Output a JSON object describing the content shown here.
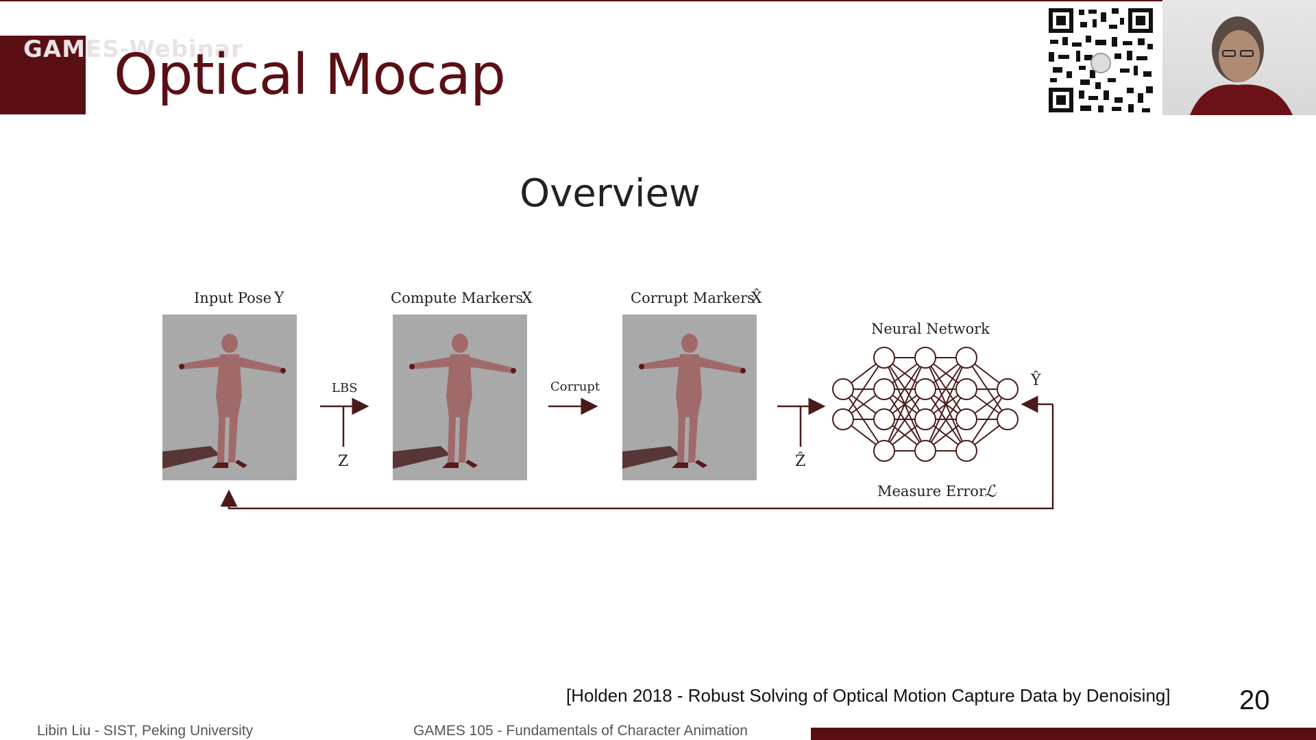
{
  "slide": {
    "watermark": "GAMES-Webinar",
    "title": "Optical Mocap",
    "subtitle": "Overview",
    "citation": "[Holden 2018 - Robust Solving of Optical Motion Capture Data by Denoising]",
    "page_number": "20",
    "footer_left": "Libin Liu - SIST, Peking University",
    "footer_center": "GAMES 105 - Fundamentals of Character Animation"
  },
  "diagram": {
    "stages": [
      {
        "label": "Input Pose",
        "symbol": "Y"
      },
      {
        "label": "Compute Markers",
        "symbol": "X"
      },
      {
        "label": "Corrupt Markers",
        "symbol": "X̂"
      }
    ],
    "arrows": [
      {
        "label": "LBS",
        "input": "Z"
      },
      {
        "label": "Corrupt"
      },
      {
        "input": "Ẑ"
      }
    ],
    "network_label": "Neural Network",
    "output_symbol": "Ŷ",
    "loss_label": "Measure Error",
    "loss_symbol": "ℒ"
  },
  "colors": {
    "brand": "#5a0f14",
    "figure_bg": "#a9a9a9",
    "figure_body": "#a06a6a"
  }
}
